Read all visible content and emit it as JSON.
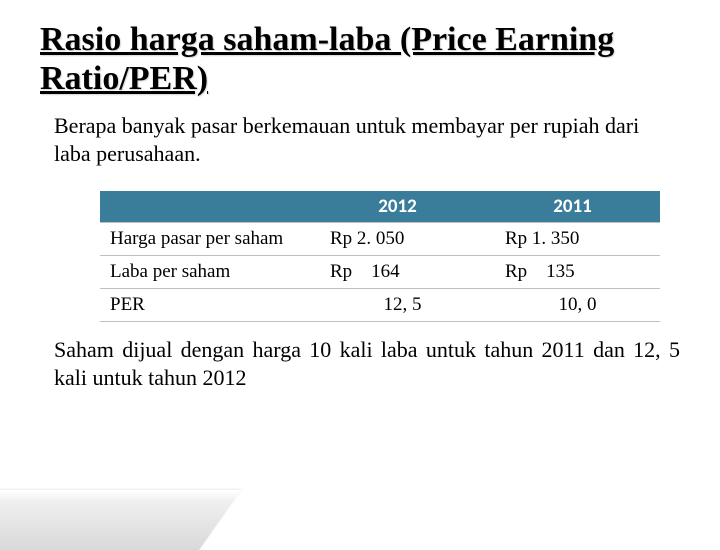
{
  "title": "Rasio harga saham-laba (Price Earning Ratio/PER)",
  "description": "Berapa banyak pasar berkemauan untuk membayar per rupiah dari laba perusahaan.",
  "table": {
    "header_bg": "#397d9a",
    "header_fg": "#ffffff",
    "border_color": "#c0c0c0",
    "columns": [
      "",
      "2012",
      "2011"
    ],
    "rows": [
      {
        "label": "Harga pasar per saham",
        "v2012": "Rp 2. 050",
        "v2011": "Rp 1. 350",
        "centered": false
      },
      {
        "label": "Laba per saham",
        "v2012": "Rp    164",
        "v2011": "Rp    135",
        "centered": false
      },
      {
        "label": "PER",
        "v2012": "12, 5",
        "v2011": "10, 0",
        "centered": true
      }
    ]
  },
  "conclusion": "Saham dijual dengan harga 10 kali laba untuk tahun 2011 dan 12, 5 kali untuk tahun 2012"
}
